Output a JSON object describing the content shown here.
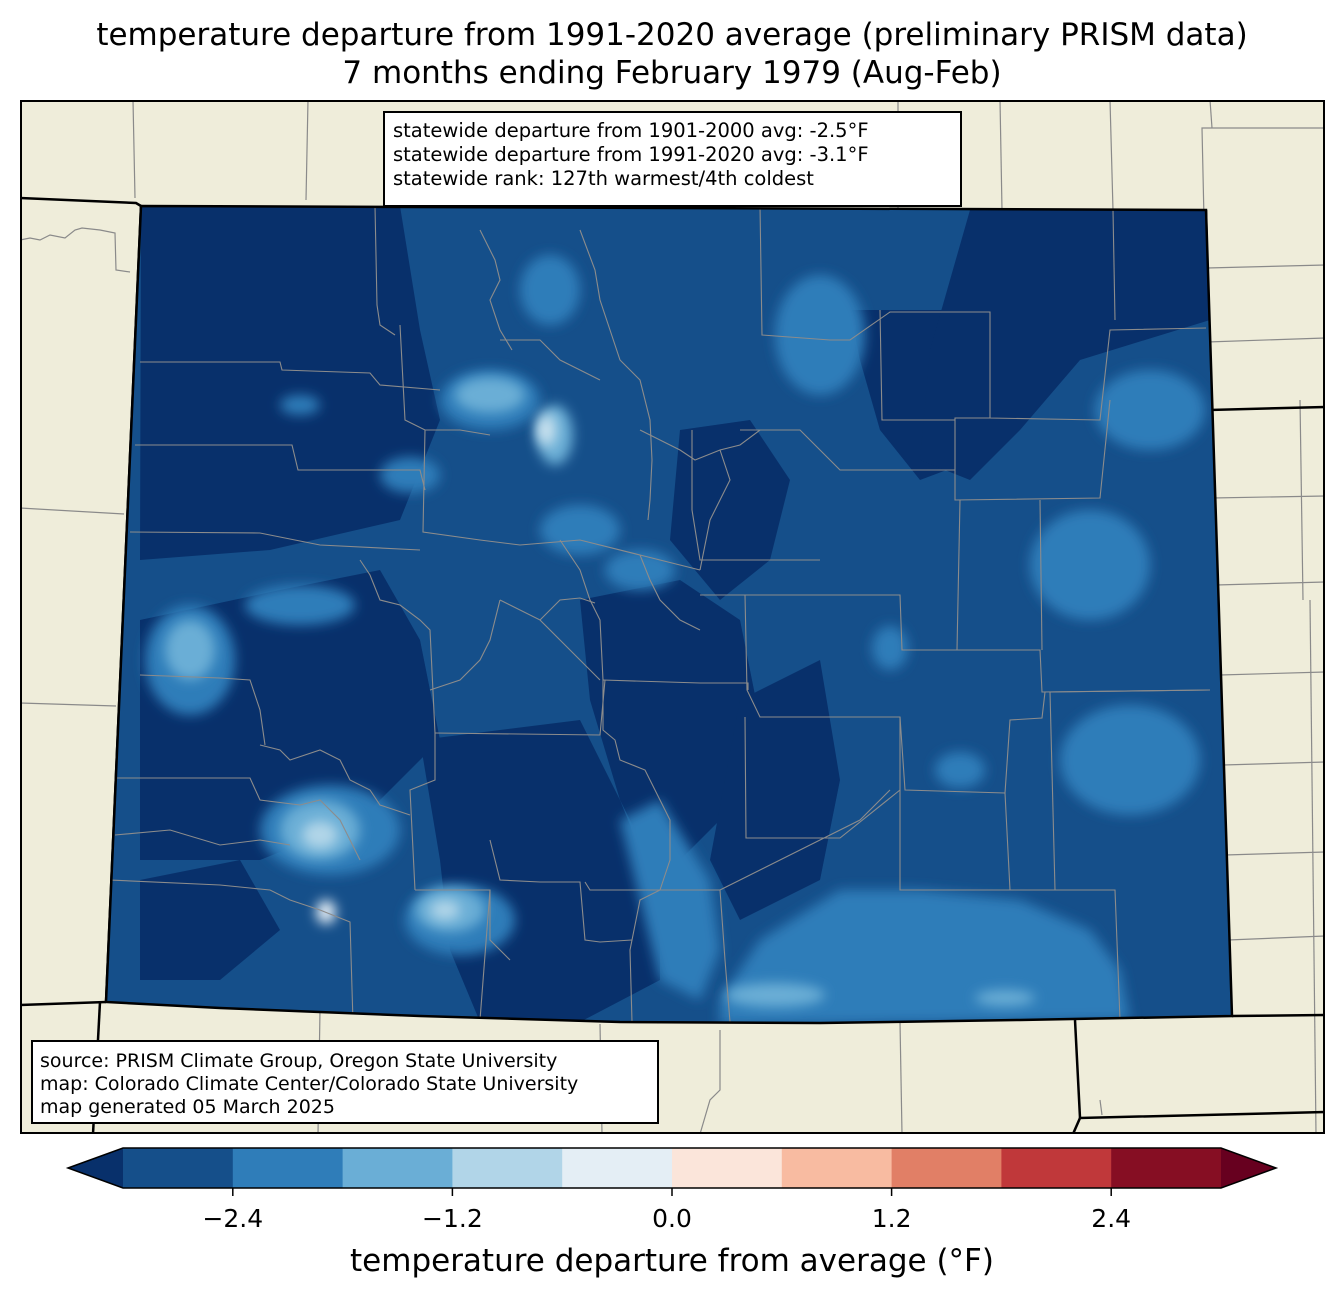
{
  "title": {
    "line1": "temperature departure from 1991-2020 average (preliminary PRISM data)",
    "line2": "7 months ending February 1979 (Aug-Feb)"
  },
  "stats_box": {
    "line1": "statewide departure from 1901-2000 avg: -2.5°F",
    "line2": "statewide departure from 1991-2020 avg: -3.1°F",
    "line3": "statewide rank: 127th warmest/4th coldest"
  },
  "source_box": {
    "line1": "source: PRISM Climate Group, Oregon State University",
    "line2": "map: Colorado Climate Center/Colorado State University",
    "line3": "map generated 05 March 2025"
  },
  "colorbar": {
    "label": "temperature departure from average (°F)",
    "ticks": [
      "−2.4",
      "−1.2",
      "0.0",
      "1.2",
      "2.4"
    ],
    "tick_values": [
      -2.4,
      -1.2,
      0.0,
      1.2,
      2.4
    ],
    "range": [
      -3.0,
      3.0
    ],
    "extend": "both",
    "colors": [
      "#08306b",
      "#154f8a",
      "#2f7db9",
      "#6aaed6",
      "#b1d5e8",
      "#e4eef5",
      "#fbe5da",
      "#f8bba1",
      "#e17f66",
      "#c0383a",
      "#860e23",
      "#67001f"
    ]
  },
  "map": {
    "land_color": "#efedda",
    "state_fill_dominant": "#154f8a",
    "coldest_color": "#08306b"
  }
}
